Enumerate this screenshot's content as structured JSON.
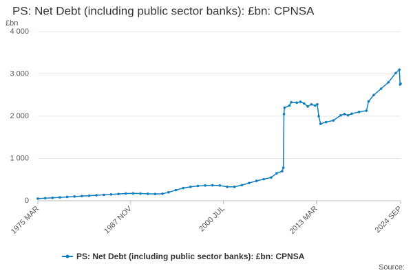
{
  "chart_data": {
    "type": "line",
    "title": "PS: Net Debt (including public sector banks): £bn: CPNSA",
    "y_unit": "£bn",
    "source": "Source:",
    "x": [
      1975.17,
      1976.17,
      1977.17,
      1978.17,
      1979.17,
      1980.17,
      1981.17,
      1982.17,
      1983.17,
      1984.17,
      1985.17,
      1986.17,
      1987.17,
      1988.17,
      1989.17,
      1990.17,
      1991.17,
      1992.17,
      1993.0,
      1994.0,
      1995.0,
      1996.0,
      1997.0,
      1998.0,
      1999.0,
      2000.0,
      2001.0,
      2002.0,
      2003.0,
      2004.0,
      2005.0,
      2006.0,
      2007.0,
      2007.75,
      2008.5,
      2008.67,
      2008.75,
      2008.83,
      2009.5,
      2009.75,
      2010.5,
      2011.0,
      2011.5,
      2012.0,
      2012.5,
      2013.0,
      2013.3,
      2013.5,
      2013.75,
      2014.5,
      2015.5,
      2016.5,
      2017.0,
      2017.5,
      2018.0,
      2019.0,
      2020.0,
      2020.3,
      2021.0,
      2022.0,
      2023.0,
      2024.0,
      2024.5,
      2024.6,
      2024.67
    ],
    "series": [
      {
        "name": "PS: Net Debt (including public sector banks): £bn: CPNSA",
        "color": "#0f7ebf",
        "values": [
          50,
          60,
          70,
          80,
          90,
          100,
          110,
          120,
          130,
          140,
          150,
          160,
          170,
          175,
          170,
          165,
          160,
          165,
          200,
          250,
          300,
          330,
          350,
          360,
          365,
          360,
          330,
          330,
          370,
          420,
          470,
          510,
          550,
          650,
          700,
          780,
          2050,
          2200,
          2250,
          2330,
          2320,
          2340,
          2300,
          2230,
          2280,
          2250,
          2280,
          2000,
          1820,
          1860,
          1900,
          2020,
          2050,
          2020,
          2060,
          2100,
          2130,
          2350,
          2500,
          2650,
          2800,
          3020,
          3100,
          2750,
          2770
        ]
      }
    ],
    "xlim": [
      1975.17,
      2024.67
    ],
    "xticks": [
      {
        "value": 1975.17,
        "label": "1975 MAR"
      },
      {
        "value": 1987.83,
        "label": "1987 NOV"
      },
      {
        "value": 2000.5,
        "label": "2000 JUL"
      },
      {
        "value": 2013.17,
        "label": "2013 MAR"
      },
      {
        "value": 2024.67,
        "label": "2024 SEP"
      }
    ],
    "ylim": [
      0,
      4000
    ],
    "yticks": [
      0,
      {
        "value": 1000,
        "label": "1 000"
      },
      {
        "value": 2000,
        "label": "2 000"
      },
      {
        "value": 3000,
        "label": "3 000"
      },
      {
        "value": 4000,
        "label": "4 000"
      }
    ],
    "grid": true
  }
}
